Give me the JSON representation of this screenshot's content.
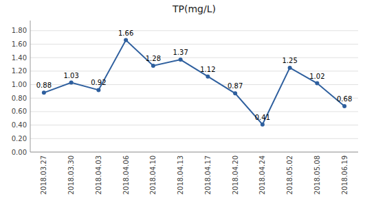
{
  "chart_data": {
    "type": "line",
    "title": "TP(mg/L)",
    "categories": [
      "2018.03.27",
      "2018.03.30",
      "2018.04.03",
      "2018.04.06",
      "2018.04.10",
      "2018.04.13",
      "2018.04.17",
      "2018.04.20",
      "2018.04.24",
      "2018.05.02",
      "2018.05.08",
      "2018.06.19"
    ],
    "values": [
      0.88,
      1.03,
      0.92,
      1.66,
      1.28,
      1.37,
      1.12,
      0.87,
      0.41,
      1.25,
      1.02,
      0.68
    ],
    "color": "#2E5F9E",
    "marker": "circle",
    "ylim": [
      0.0,
      1.95
    ],
    "yticks": [
      {
        "value": 0.0,
        "label": "0.00"
      },
      {
        "value": 0.2,
        "label": "0.20"
      },
      {
        "value": 0.4,
        "label": "0.40"
      },
      {
        "value": 0.6,
        "label": "0.60"
      },
      {
        "value": 0.8,
        "label": "0.80"
      },
      {
        "value": 1.0,
        "label": "1.00"
      },
      {
        "value": 1.2,
        "label": "1.20"
      },
      {
        "value": 1.4,
        "label": "1.40"
      },
      {
        "value": 1.6,
        "label": "1.60"
      },
      {
        "value": 1.8,
        "label": "1.80"
      }
    ],
    "grid": true,
    "data_labels": true
  }
}
